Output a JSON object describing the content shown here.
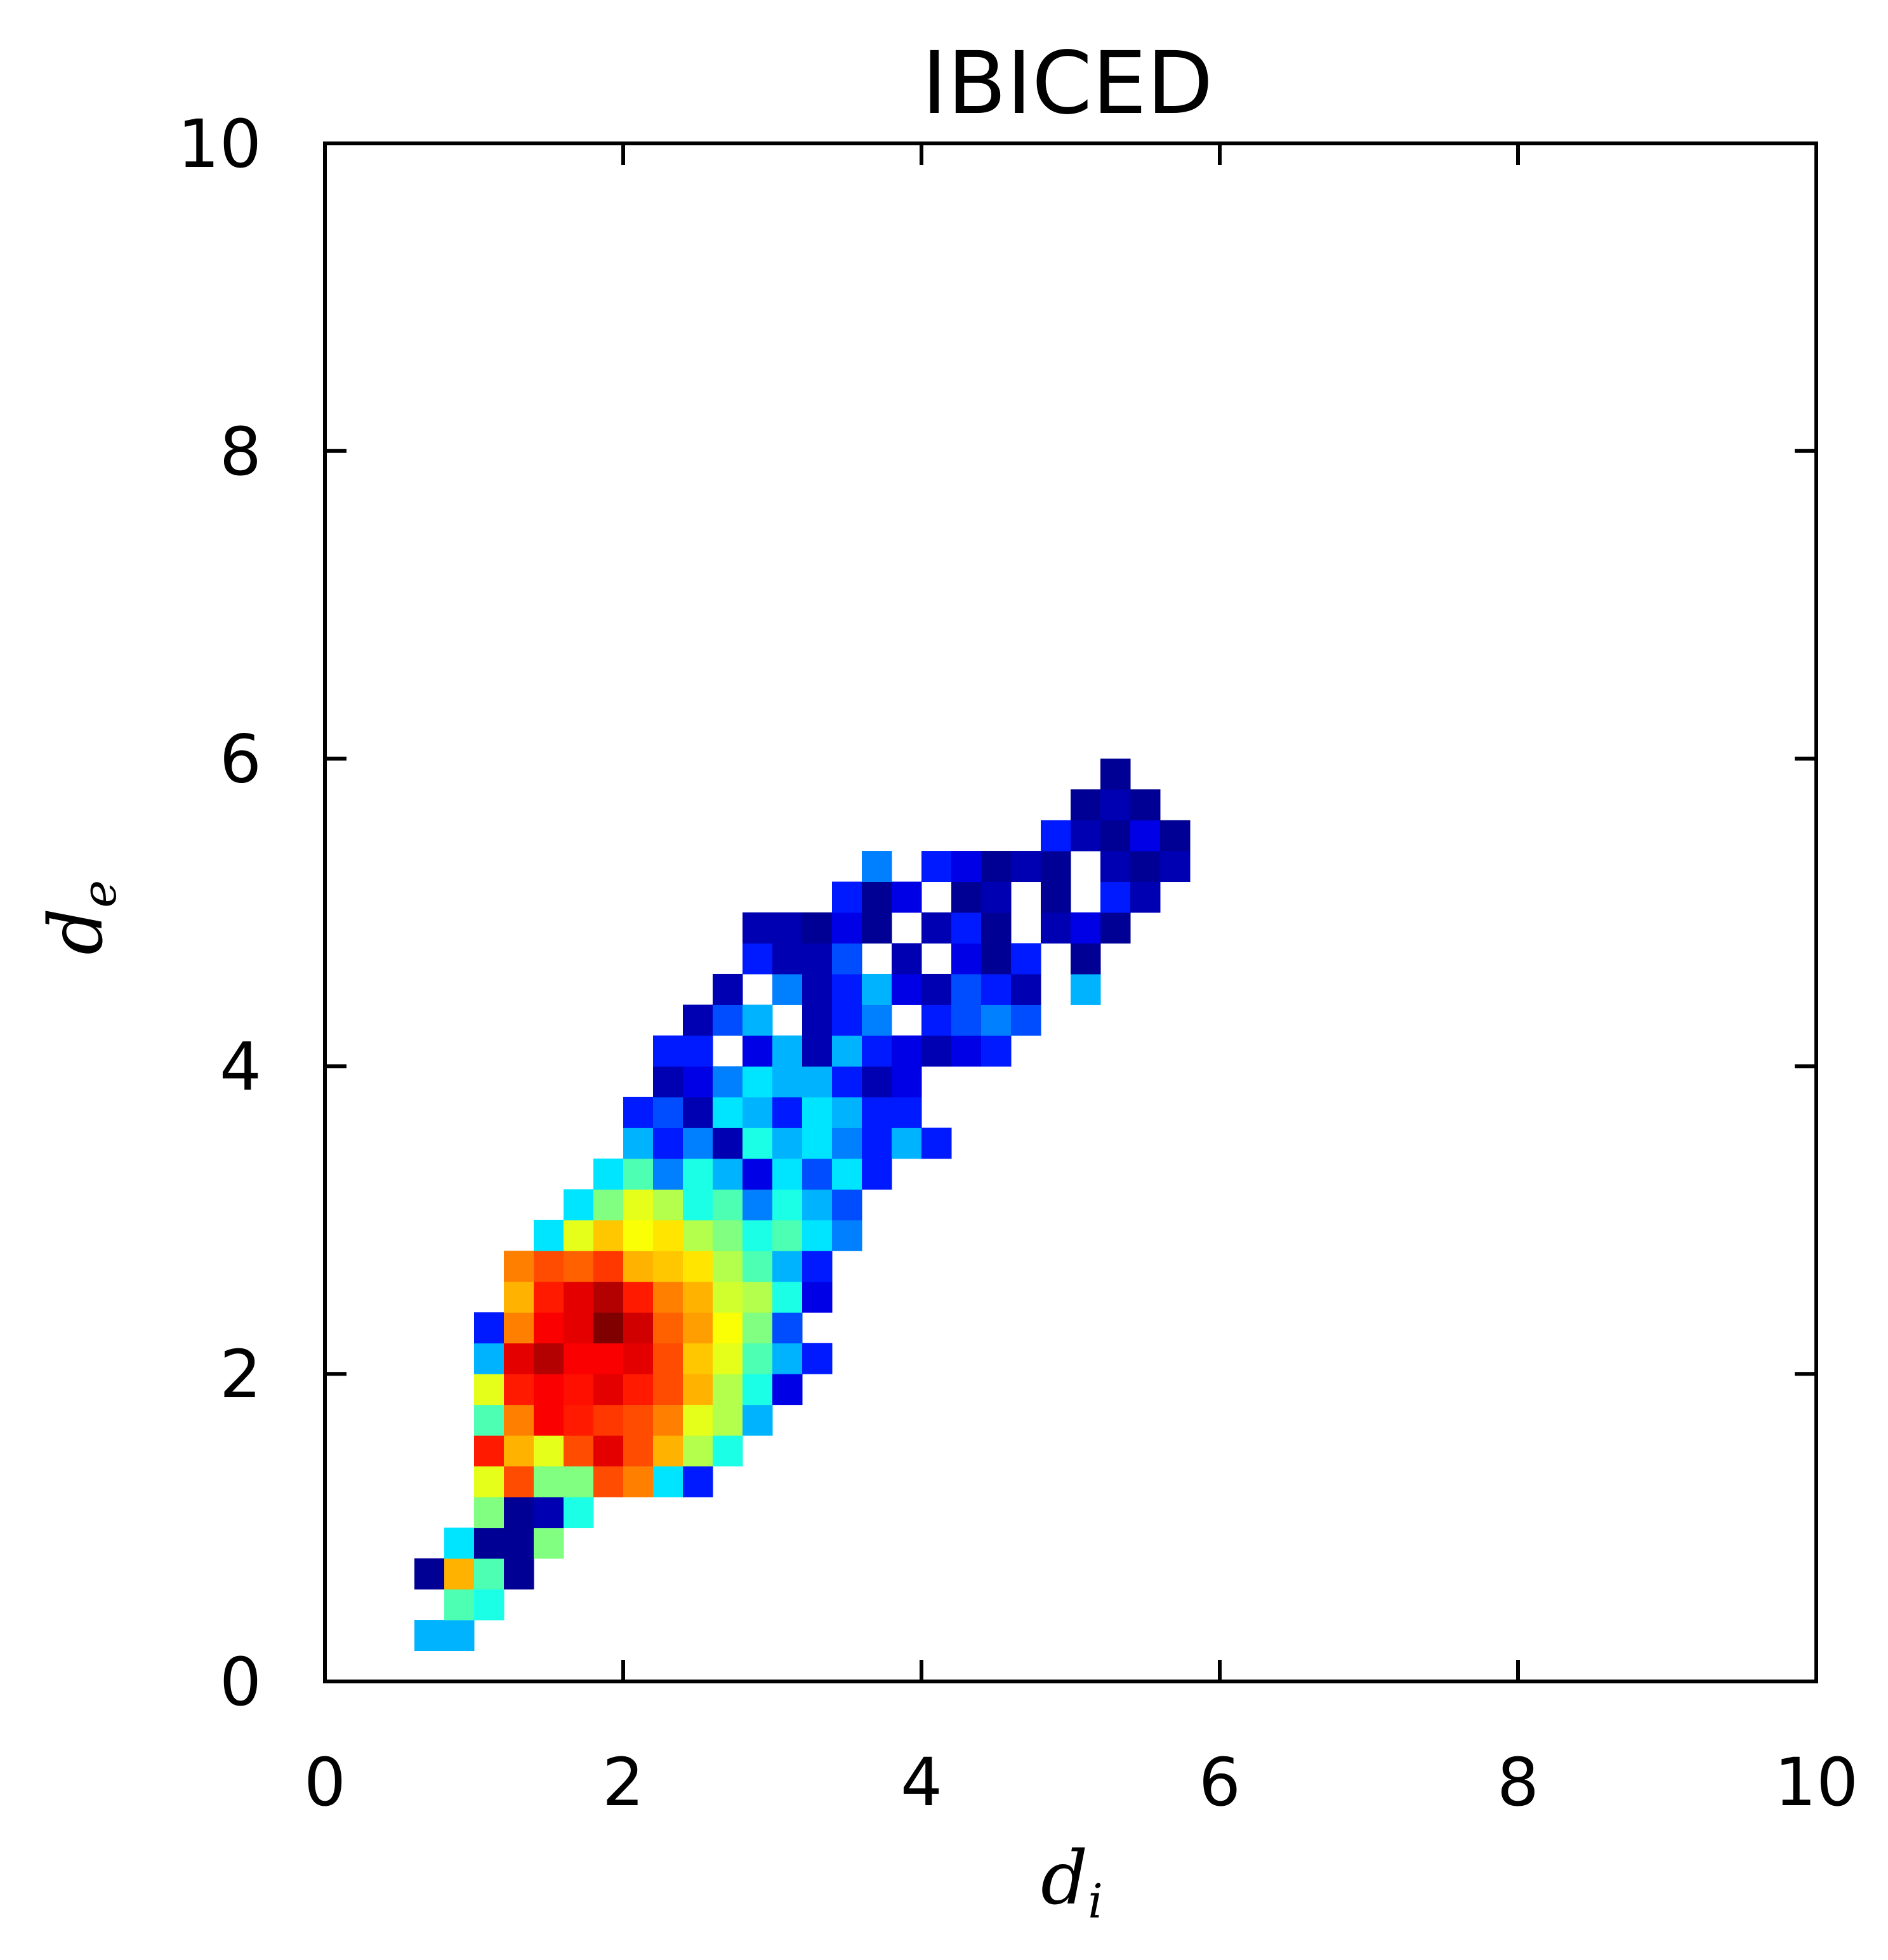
{
  "chart_data": {
    "type": "heatmap",
    "title": "IBICED",
    "xlabel": "d",
    "xlabel_sub": "i",
    "ylabel": "d",
    "ylabel_sub": "e",
    "xlim": [
      0,
      10
    ],
    "ylim": [
      0,
      10
    ],
    "xticks": [
      "0",
      "2",
      "4",
      "6",
      "8",
      "10"
    ],
    "yticks": [
      "0",
      "2",
      "4",
      "6",
      "8",
      "10"
    ],
    "colormap": "jet",
    "grid": false,
    "bin_size": 0.2,
    "bin_min": 0.0,
    "bins_per_axis": 50,
    "bins_note": "each entry = [x-bin index, y-bin index, normalized density 0..1]",
    "bins": [
      [
        3,
        1,
        0.3
      ],
      [
        4,
        1,
        0.3
      ],
      [
        4,
        2,
        0.45
      ],
      [
        5,
        2,
        0.4
      ],
      [
        3,
        3,
        0.02
      ],
      [
        4,
        3,
        0.7
      ],
      [
        5,
        3,
        0.45
      ],
      [
        6,
        3,
        0.02
      ],
      [
        4,
        4,
        0.35
      ],
      [
        5,
        4,
        0.02
      ],
      [
        6,
        4,
        0.02
      ],
      [
        7,
        4,
        0.5
      ],
      [
        5,
        5,
        0.5
      ],
      [
        6,
        5,
        0.02
      ],
      [
        7,
        5,
        0.05
      ],
      [
        8,
        5,
        0.4
      ],
      [
        5,
        6,
        0.6
      ],
      [
        6,
        6,
        0.8
      ],
      [
        7,
        6,
        0.5
      ],
      [
        8,
        6,
        0.5
      ],
      [
        9,
        6,
        0.8
      ],
      [
        10,
        6,
        0.75
      ],
      [
        11,
        6,
        0.35
      ],
      [
        12,
        6,
        0.15
      ],
      [
        5,
        7,
        0.85
      ],
      [
        6,
        7,
        0.7
      ],
      [
        7,
        7,
        0.6
      ],
      [
        8,
        7,
        0.8
      ],
      [
        9,
        7,
        0.9
      ],
      [
        10,
        7,
        0.8
      ],
      [
        11,
        7,
        0.7
      ],
      [
        12,
        7,
        0.55
      ],
      [
        13,
        7,
        0.4
      ],
      [
        5,
        8,
        0.45
      ],
      [
        6,
        8,
        0.75
      ],
      [
        7,
        8,
        0.88
      ],
      [
        8,
        8,
        0.85
      ],
      [
        9,
        8,
        0.82
      ],
      [
        10,
        8,
        0.8
      ],
      [
        11,
        8,
        0.75
      ],
      [
        12,
        8,
        0.6
      ],
      [
        13,
        8,
        0.55
      ],
      [
        14,
        8,
        0.3
      ],
      [
        5,
        9,
        0.6
      ],
      [
        6,
        9,
        0.85
      ],
      [
        7,
        9,
        0.88
      ],
      [
        8,
        9,
        0.86
      ],
      [
        9,
        9,
        0.9
      ],
      [
        10,
        9,
        0.85
      ],
      [
        11,
        9,
        0.8
      ],
      [
        12,
        9,
        0.7
      ],
      [
        13,
        9,
        0.55
      ],
      [
        14,
        9,
        0.4
      ],
      [
        15,
        9,
        0.1
      ],
      [
        5,
        10,
        0.3
      ],
      [
        6,
        10,
        0.9
      ],
      [
        7,
        10,
        0.95
      ],
      [
        8,
        10,
        0.88
      ],
      [
        9,
        10,
        0.88
      ],
      [
        10,
        10,
        0.9
      ],
      [
        11,
        10,
        0.8
      ],
      [
        12,
        10,
        0.68
      ],
      [
        13,
        10,
        0.6
      ],
      [
        14,
        10,
        0.45
      ],
      [
        15,
        10,
        0.3
      ],
      [
        16,
        10,
        0.15
      ],
      [
        5,
        11,
        0.15
      ],
      [
        6,
        11,
        0.75
      ],
      [
        7,
        11,
        0.88
      ],
      [
        8,
        11,
        0.9
      ],
      [
        9,
        11,
        1.0
      ],
      [
        10,
        11,
        0.92
      ],
      [
        11,
        11,
        0.78
      ],
      [
        12,
        11,
        0.72
      ],
      [
        13,
        11,
        0.62
      ],
      [
        14,
        11,
        0.5
      ],
      [
        15,
        11,
        0.2
      ],
      [
        6,
        12,
        0.7
      ],
      [
        7,
        12,
        0.85
      ],
      [
        8,
        12,
        0.9
      ],
      [
        9,
        12,
        0.95
      ],
      [
        10,
        12,
        0.85
      ],
      [
        11,
        12,
        0.75
      ],
      [
        12,
        12,
        0.7
      ],
      [
        13,
        12,
        0.58
      ],
      [
        14,
        12,
        0.55
      ],
      [
        15,
        12,
        0.4
      ],
      [
        16,
        12,
        0.1
      ],
      [
        6,
        13,
        0.75
      ],
      [
        7,
        13,
        0.8
      ],
      [
        8,
        13,
        0.78
      ],
      [
        9,
        13,
        0.82
      ],
      [
        10,
        13,
        0.7
      ],
      [
        11,
        13,
        0.68
      ],
      [
        12,
        13,
        0.65
      ],
      [
        13,
        13,
        0.55
      ],
      [
        14,
        13,
        0.45
      ],
      [
        15,
        13,
        0.3
      ],
      [
        16,
        13,
        0.15
      ],
      [
        7,
        14,
        0.35
      ],
      [
        8,
        14,
        0.6
      ],
      [
        9,
        14,
        0.68
      ],
      [
        10,
        14,
        0.62
      ],
      [
        11,
        14,
        0.65
      ],
      [
        12,
        14,
        0.55
      ],
      [
        13,
        14,
        0.5
      ],
      [
        14,
        14,
        0.4
      ],
      [
        15,
        14,
        0.45
      ],
      [
        16,
        14,
        0.35
      ],
      [
        17,
        14,
        0.25
      ],
      [
        8,
        15,
        0.35
      ],
      [
        9,
        15,
        0.5
      ],
      [
        10,
        15,
        0.6
      ],
      [
        11,
        15,
        0.55
      ],
      [
        12,
        15,
        0.4
      ],
      [
        13,
        15,
        0.45
      ],
      [
        14,
        15,
        0.25
      ],
      [
        15,
        15,
        0.4
      ],
      [
        16,
        15,
        0.3
      ],
      [
        17,
        15,
        0.2
      ],
      [
        9,
        16,
        0.35
      ],
      [
        10,
        16,
        0.45
      ],
      [
        11,
        16,
        0.25
      ],
      [
        12,
        16,
        0.4
      ],
      [
        13,
        16,
        0.3
      ],
      [
        14,
        16,
        0.1
      ],
      [
        15,
        16,
        0.35
      ],
      [
        16,
        16,
        0.2
      ],
      [
        17,
        16,
        0.35
      ],
      [
        18,
        16,
        0.15
      ],
      [
        10,
        17,
        0.3
      ],
      [
        11,
        17,
        0.15
      ],
      [
        12,
        17,
        0.25
      ],
      [
        13,
        17,
        0.05
      ],
      [
        14,
        17,
        0.4
      ],
      [
        15,
        17,
        0.3
      ],
      [
        16,
        17,
        0.35
      ],
      [
        17,
        17,
        0.25
      ],
      [
        18,
        17,
        0.15
      ],
      [
        19,
        17,
        0.3
      ],
      [
        20,
        17,
        0.15
      ],
      [
        10,
        18,
        0.15
      ],
      [
        11,
        18,
        0.2
      ],
      [
        12,
        18,
        0.05
      ],
      [
        13,
        18,
        0.35
      ],
      [
        14,
        18,
        0.3
      ],
      [
        15,
        18,
        0.15
      ],
      [
        16,
        18,
        0.35
      ],
      [
        17,
        18,
        0.3
      ],
      [
        18,
        18,
        0.15
      ],
      [
        19,
        18,
        0.15
      ],
      [
        11,
        19,
        0.05
      ],
      [
        12,
        19,
        0.1
      ],
      [
        13,
        19,
        0.25
      ],
      [
        14,
        19,
        0.35
      ],
      [
        15,
        19,
        0.3
      ],
      [
        16,
        19,
        0.3
      ],
      [
        17,
        19,
        0.15
      ],
      [
        18,
        19,
        0.05
      ],
      [
        19,
        19,
        0.1
      ],
      [
        11,
        20,
        0.15
      ],
      [
        12,
        20,
        0.15
      ],
      [
        14,
        20,
        0.1
      ],
      [
        15,
        20,
        0.3
      ],
      [
        16,
        20,
        0.05
      ],
      [
        17,
        20,
        0.3
      ],
      [
        18,
        20,
        0.15
      ],
      [
        19,
        20,
        0.1
      ],
      [
        20,
        20,
        0.05
      ],
      [
        21,
        20,
        0.1
      ],
      [
        22,
        20,
        0.15
      ],
      [
        12,
        21,
        0.05
      ],
      [
        13,
        21,
        0.2
      ],
      [
        14,
        21,
        0.3
      ],
      [
        16,
        21,
        0.05
      ],
      [
        17,
        21,
        0.15
      ],
      [
        18,
        21,
        0.25
      ],
      [
        20,
        21,
        0.15
      ],
      [
        21,
        21,
        0.2
      ],
      [
        22,
        21,
        0.25
      ],
      [
        23,
        21,
        0.2
      ],
      [
        13,
        22,
        0.05
      ],
      [
        15,
        22,
        0.25
      ],
      [
        16,
        22,
        0.05
      ],
      [
        17,
        22,
        0.15
      ],
      [
        18,
        22,
        0.3
      ],
      [
        19,
        22,
        0.1
      ],
      [
        20,
        22,
        0.05
      ],
      [
        21,
        22,
        0.2
      ],
      [
        22,
        22,
        0.15
      ],
      [
        23,
        22,
        0.05
      ],
      [
        25,
        22,
        0.3
      ],
      [
        14,
        23,
        0.15
      ],
      [
        15,
        23,
        0.05
      ],
      [
        16,
        23,
        0.05
      ],
      [
        17,
        23,
        0.2
      ],
      [
        19,
        23,
        0.05
      ],
      [
        21,
        23,
        0.1
      ],
      [
        22,
        23,
        0.02
      ],
      [
        23,
        23,
        0.15
      ],
      [
        25,
        23,
        0.02
      ],
      [
        14,
        24,
        0.05
      ],
      [
        15,
        24,
        0.05
      ],
      [
        16,
        24,
        0.02
      ],
      [
        17,
        24,
        0.1
      ],
      [
        18,
        24,
        0.02
      ],
      [
        20,
        24,
        0.05
      ],
      [
        21,
        24,
        0.15
      ],
      [
        22,
        24,
        0.02
      ],
      [
        24,
        24,
        0.05
      ],
      [
        25,
        24,
        0.1
      ],
      [
        26,
        24,
        0.02
      ],
      [
        17,
        25,
        0.15
      ],
      [
        18,
        25,
        0.02
      ],
      [
        19,
        25,
        0.1
      ],
      [
        21,
        25,
        0.02
      ],
      [
        22,
        25,
        0.05
      ],
      [
        24,
        25,
        0.02
      ],
      [
        26,
        25,
        0.15
      ],
      [
        27,
        25,
        0.05
      ],
      [
        18,
        26,
        0.25
      ],
      [
        20,
        26,
        0.15
      ],
      [
        21,
        26,
        0.1
      ],
      [
        22,
        26,
        0.02
      ],
      [
        23,
        26,
        0.05
      ],
      [
        24,
        26,
        0.02
      ],
      [
        26,
        26,
        0.05
      ],
      [
        27,
        26,
        0.02
      ],
      [
        28,
        26,
        0.05
      ],
      [
        24,
        27,
        0.15
      ],
      [
        25,
        27,
        0.05
      ],
      [
        26,
        27,
        0.02
      ],
      [
        27,
        27,
        0.1
      ],
      [
        28,
        27,
        0.02
      ],
      [
        25,
        28,
        0.02
      ],
      [
        26,
        28,
        0.05
      ],
      [
        27,
        28,
        0.02
      ],
      [
        26,
        29,
        0.02
      ]
    ]
  }
}
